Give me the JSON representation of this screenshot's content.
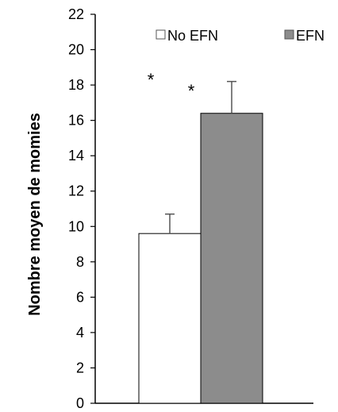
{
  "chart_data": {
    "type": "bar",
    "ylabel": "Nombre moyen de momies",
    "ylim": [
      0,
      22
    ],
    "yticks": [
      "0",
      "2",
      "4",
      "6",
      "8",
      "10",
      "12",
      "14",
      "16",
      "18",
      "20",
      "22"
    ],
    "legend_position": "top-right",
    "series": [
      {
        "name": "No EFN",
        "value": 9.6,
        "error": 1.1,
        "color": "#ffffff"
      },
      {
        "name": "EFN",
        "value": 16.4,
        "error": 1.8,
        "color": "#8c8c8c"
      }
    ],
    "annotations": [
      "*",
      "*"
    ]
  }
}
